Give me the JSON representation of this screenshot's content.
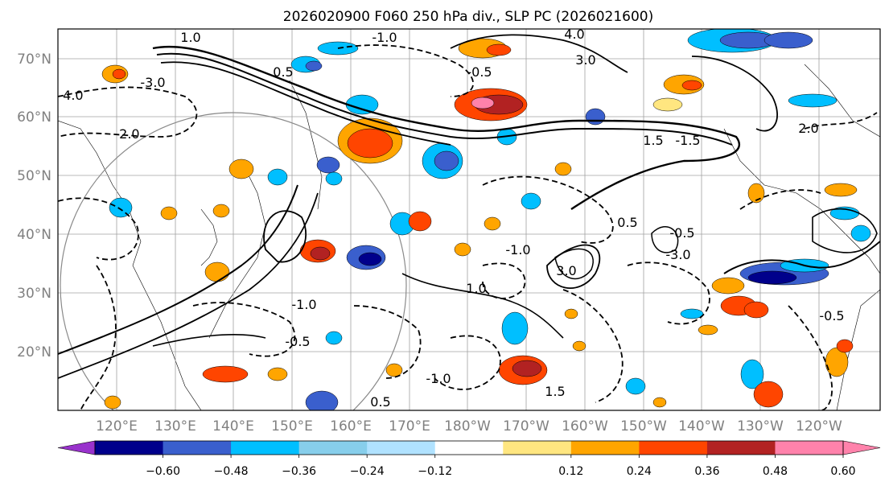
{
  "figure": {
    "title": "2026020900 F060 250 hPa div., SLP PC (2026021600)"
  },
  "map": {
    "lat_labels": [
      "70°N",
      "60°N",
      "50°N",
      "40°N",
      "30°N",
      "20°N"
    ],
    "lon_labels": [
      "120°E",
      "130°E",
      "140°E",
      "150°E",
      "160°E",
      "170°E",
      "180°W",
      "170°W",
      "160°W",
      "150°W",
      "140°W",
      "130°W",
      "120°W"
    ],
    "contour_labels": [
      "-1.0",
      "-4.0",
      "1.0",
      "4.0",
      "3.0",
      "-3.0",
      "-2.0",
      "0.5",
      "-0.5",
      "1.5",
      "-1.5",
      "2.0",
      "-1.0",
      "3.0",
      "-3.0",
      "0.5",
      "-0.5",
      "-1.0",
      "1.0",
      "-0.5",
      "0.5",
      "-1.0",
      "1.5",
      "-0.5"
    ]
  },
  "colorbar": {
    "ticks": [
      "−0.60",
      "−0.48",
      "−0.36",
      "−0.24",
      "−0.12",
      "0.12",
      "0.24",
      "0.36",
      "0.48",
      "0.60"
    ],
    "colors": [
      "#9932cc",
      "#00008b",
      "#3a5fcd",
      "#00bfff",
      "#87ceeb",
      "#b0e2ff",
      "#ffffff",
      "#ffe680",
      "#ffa500",
      "#ff4500",
      "#b22222",
      "#ff82ab"
    ]
  },
  "palette": {
    "shading": [
      "#9932cc",
      "#00008b",
      "#3a5fcd",
      "#00bfff",
      "#b0e2ff",
      "#ffe680",
      "#ffa500",
      "#ff4500",
      "#b22222",
      "#ff82ab"
    ]
  }
}
